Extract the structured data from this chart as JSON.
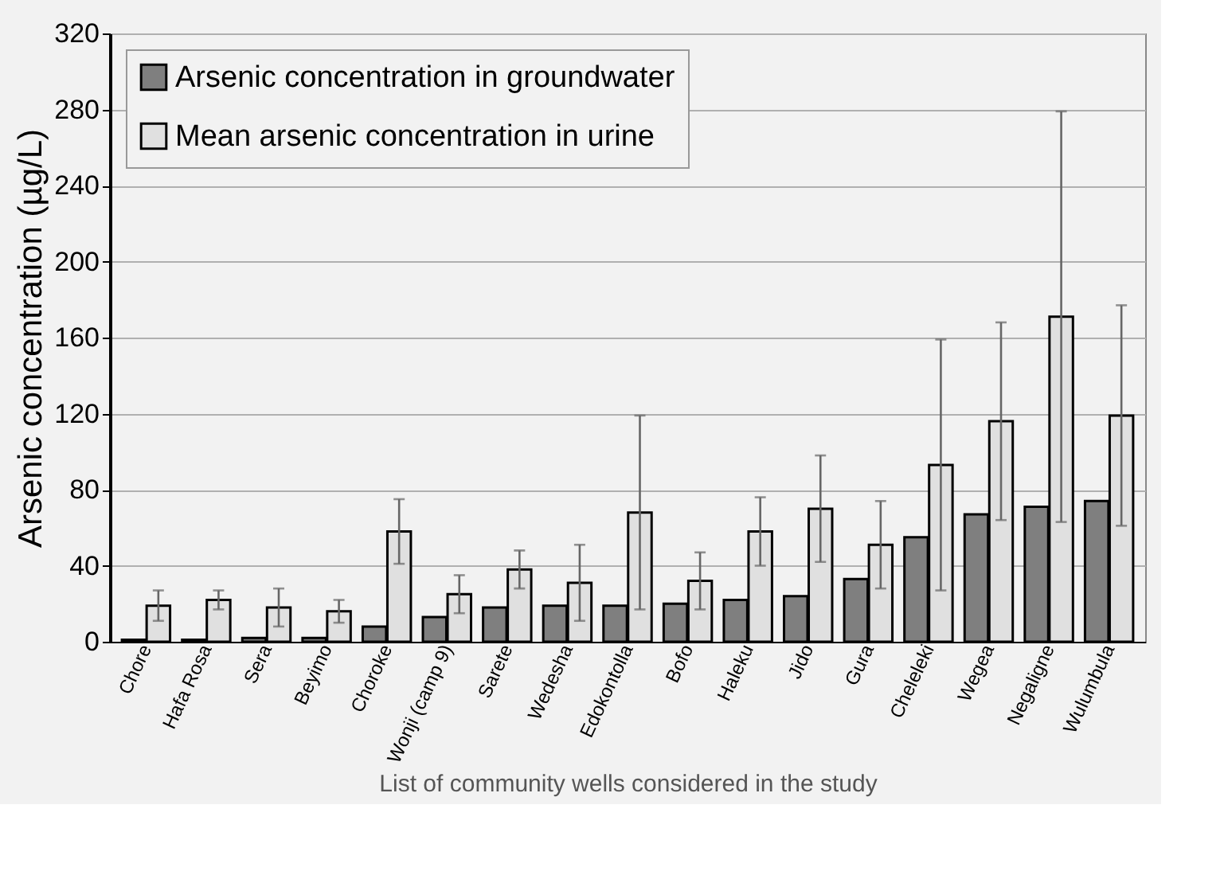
{
  "chart_data": {
    "type": "bar",
    "xlabel": "List of community wells considered in the study",
    "ylabel": "Arsenic concentration (µg/L)",
    "categories": [
      "Chore",
      "Hafa Rosa",
      "Sera",
      "Beyimo",
      "Choroke",
      "Wonji (camp 9)",
      "Sarete",
      "Wedesha",
      "Edokontolla",
      "Bofo",
      "Haleku",
      "Jido",
      "Gura",
      "Cheleleki",
      "Wegea",
      "Negaligne",
      "Wulumbula"
    ],
    "series": [
      {
        "name": "Arsenic concentration in groundwater",
        "color": "#7f7f7f",
        "values": [
          1,
          1,
          2,
          2,
          8,
          13,
          18,
          19,
          19,
          20,
          22,
          24,
          33,
          55,
          67,
          71,
          74
        ]
      },
      {
        "name": "Mean arsenic concentration in urine",
        "color": "#e0e0e0",
        "values": [
          19,
          22,
          18,
          16,
          58,
          25,
          38,
          31,
          68,
          32,
          58,
          70,
          51,
          93,
          116,
          171,
          119
        ],
        "errors": [
          8,
          5,
          10,
          6,
          17,
          10,
          10,
          20,
          51,
          15,
          18,
          28,
          23,
          66,
          52,
          108,
          58
        ]
      }
    ],
    "ylim": [
      0,
      320
    ],
    "yticks": [
      0,
      40,
      80,
      120,
      160,
      200,
      240,
      280,
      320
    ],
    "grid": "y",
    "legend": "top left"
  }
}
